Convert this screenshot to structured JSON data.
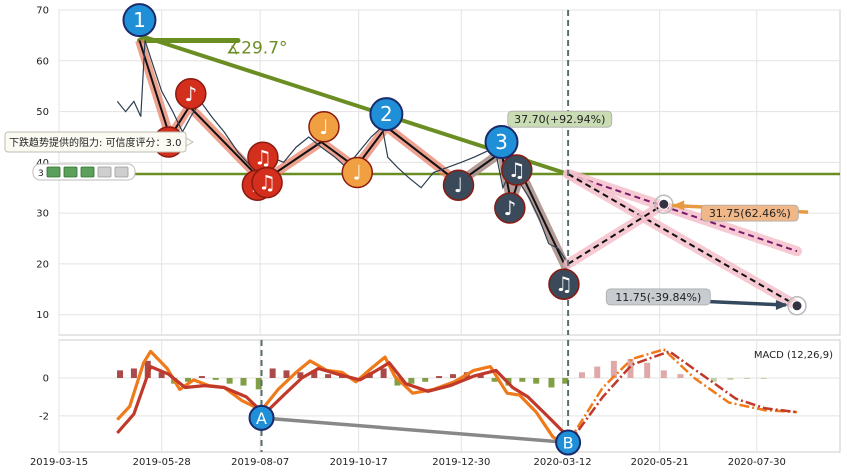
{
  "chart_data": [
    {
      "type": "line",
      "panel": "price",
      "ylim": [
        6,
        70
      ],
      "yticks": [
        10,
        20,
        30,
        40,
        50,
        60,
        70
      ],
      "grid": true,
      "price_series": [
        {
          "x": "2019-04-26",
          "y": 52
        },
        {
          "x": "2019-05-02",
          "y": 50
        },
        {
          "x": "2019-05-08",
          "y": 52
        },
        {
          "x": "2019-05-13",
          "y": 49
        },
        {
          "x": "2019-05-16",
          "y": 64
        },
        {
          "x": "2019-05-22",
          "y": 59
        },
        {
          "x": "2019-05-28",
          "y": 54
        },
        {
          "x": "2019-06-05",
          "y": 50
        },
        {
          "x": "2019-06-12",
          "y": 46
        },
        {
          "x": "2019-06-18",
          "y": 49
        },
        {
          "x": "2019-06-25",
          "y": 52
        },
        {
          "x": "2019-07-03",
          "y": 49
        },
        {
          "x": "2019-07-12",
          "y": 46
        },
        {
          "x": "2019-07-22",
          "y": 42
        },
        {
          "x": "2019-08-01",
          "y": 39
        },
        {
          "x": "2019-08-08",
          "y": 37
        },
        {
          "x": "2019-08-15",
          "y": 41
        },
        {
          "x": "2019-08-24",
          "y": 40
        },
        {
          "x": "2019-09-02",
          "y": 43
        },
        {
          "x": "2019-09-11",
          "y": 45
        },
        {
          "x": "2019-09-20",
          "y": 43
        },
        {
          "x": "2019-09-30",
          "y": 41
        },
        {
          "x": "2019-10-08",
          "y": 39
        },
        {
          "x": "2019-10-17",
          "y": 42
        },
        {
          "x": "2019-10-26",
          "y": 45
        },
        {
          "x": "2019-11-03",
          "y": 47
        },
        {
          "x": "2019-11-07",
          "y": 41
        },
        {
          "x": "2019-11-14",
          "y": 39
        },
        {
          "x": "2019-11-22",
          "y": 37
        },
        {
          "x": "2019-12-01",
          "y": 35
        },
        {
          "x": "2019-12-10",
          "y": 38
        },
        {
          "x": "2019-12-20",
          "y": 39
        },
        {
          "x": "2019-12-30",
          "y": 40
        },
        {
          "x": "2020-01-08",
          "y": 41
        },
        {
          "x": "2020-01-16",
          "y": 42
        },
        {
          "x": "2020-01-23",
          "y": 43
        },
        {
          "x": "2020-01-29",
          "y": 35
        },
        {
          "x": "2020-02-03",
          "y": 38
        },
        {
          "x": "2020-02-10",
          "y": 36
        },
        {
          "x": "2020-02-17",
          "y": 33
        },
        {
          "x": "2020-02-24",
          "y": 29
        },
        {
          "x": "2020-03-02",
          "y": 24
        },
        {
          "x": "2020-03-09",
          "y": 23
        },
        {
          "x": "2020-03-16",
          "y": 20
        }
      ],
      "zigzag": [
        {
          "x": "2019-05-12",
          "y": 64
        },
        {
          "x": "2019-06-03",
          "y": 45
        },
        {
          "x": "2019-06-17",
          "y": 51
        },
        {
          "x": "2019-08-06",
          "y": 37
        },
        {
          "x": "2019-08-13",
          "y": 37
        },
        {
          "x": "2019-09-20",
          "y": 44
        },
        {
          "x": "2019-10-15",
          "y": 39
        },
        {
          "x": "2019-11-06",
          "y": 47
        },
        {
          "x": "2019-12-28",
          "y": 36
        },
        {
          "x": "2020-01-28",
          "y": 42
        },
        {
          "x": "2020-02-04",
          "y": 32
        },
        {
          "x": "2020-02-11",
          "y": 38
        },
        {
          "x": "2020-03-15",
          "y": 19
        }
      ],
      "trendline": {
        "from": {
          "x": "2019-05-12",
          "y": 65
        },
        "to": {
          "x": "2020-03-16",
          "y": 37.7
        }
      },
      "angle_line": {
        "from": {
          "x": "2019-05-12",
          "y": 64
        },
        "to": {
          "x": "2019-07-22",
          "y": 64
        },
        "label": "∡29.7°"
      },
      "support_level": 37.7,
      "wave_labels": [
        {
          "text": "1",
          "x": "2019-05-12",
          "y": 68
        },
        {
          "text": "2",
          "x": "2019-11-06",
          "y": 49.5
        },
        {
          "text": "3",
          "x": "2020-01-28",
          "y": 44
        }
      ],
      "note_markers": [
        {
          "glyph": "♪",
          "x": "2019-06-02",
          "y": 44,
          "color": "#d42f1c"
        },
        {
          "glyph": "♪",
          "x": "2019-06-18",
          "y": 53.5,
          "color": "#d42f1c"
        },
        {
          "glyph": "♫",
          "x": "2019-08-09",
          "y": 41,
          "color": "#d42f1c"
        },
        {
          "glyph": "♪",
          "x": "2019-08-05",
          "y": 35.5,
          "color": "#d42f1c"
        },
        {
          "glyph": "♫",
          "x": "2019-08-12",
          "y": 36,
          "color": "#d42f1c"
        },
        {
          "glyph": "♩",
          "x": "2019-09-22",
          "y": 47,
          "color": "#f0a040"
        },
        {
          "glyph": "♩",
          "x": "2019-10-16",
          "y": 38,
          "color": "#f0a040"
        },
        {
          "glyph": "♩",
          "x": "2019-12-28",
          "y": 35.5,
          "color": "#3a4a5a"
        },
        {
          "glyph": "♫",
          "x": "2020-02-08",
          "y": 38.5,
          "color": "#3a4a5a"
        },
        {
          "glyph": "♪",
          "x": "2020-02-03",
          "y": 31,
          "color": "#3a4a5a"
        },
        {
          "glyph": "♫",
          "x": "2020-03-13",
          "y": 16,
          "color": "#3a4a5a"
        }
      ],
      "projections": [
        {
          "from": {
            "x": "2020-03-16",
            "y": 37.7
          },
          "to": {
            "x": "2020-08-28",
            "y": 22.5
          },
          "style": "purple-dash"
        },
        {
          "from": {
            "x": "2020-03-16",
            "y": 37.7
          },
          "to": {
            "x": "2020-08-28",
            "y": 11.75
          },
          "style": "black-dash"
        },
        {
          "from": {
            "x": "2020-03-16",
            "y": 20
          },
          "to": {
            "x": "2020-05-24",
            "y": 31.75
          },
          "style": "black-dash"
        }
      ],
      "annotations": [
        {
          "text": "37.70(+92.94%)",
          "x": "2020-03-10",
          "y": 48.5,
          "bg": "#c9dcb4"
        },
        {
          "text": "31.75(62.46%)",
          "x": "2020-07-25",
          "y": 30,
          "bg": "#f0b888"
        },
        {
          "text": "11.75(-39.84%)",
          "x": "2020-05-20",
          "y": 13.5,
          "bg": "#c8ccd0"
        }
      ],
      "tooltip": {
        "text": "下跌趋势提供的阻力: 可信度评分：3.0",
        "rating_label": "3"
      },
      "vline_date": "2020-03-16"
    },
    {
      "type": "line",
      "panel": "macd",
      "legend": "MACD (12,26,9)",
      "ylim": [
        -3.9,
        2
      ],
      "yticks": [
        0,
        -2
      ],
      "grid": true,
      "macd": [
        {
          "x": "2019-04-26",
          "y": -2.2
        },
        {
          "x": "2019-05-05",
          "y": -1.5
        },
        {
          "x": "2019-05-15",
          "y": 0.8
        },
        {
          "x": "2019-05-20",
          "y": 1.4
        },
        {
          "x": "2019-06-01",
          "y": 0.5
        },
        {
          "x": "2019-06-10",
          "y": -0.6
        },
        {
          "x": "2019-06-20",
          "y": -0.1
        },
        {
          "x": "2019-07-01",
          "y": -0.4
        },
        {
          "x": "2019-07-12",
          "y": -0.5
        },
        {
          "x": "2019-07-25",
          "y": -1.2
        },
        {
          "x": "2019-08-08",
          "y": -1.7
        },
        {
          "x": "2019-08-20",
          "y": -0.6
        },
        {
          "x": "2019-09-02",
          "y": 0.3
        },
        {
          "x": "2019-09-12",
          "y": 0.9
        },
        {
          "x": "2019-09-24",
          "y": 0.4
        },
        {
          "x": "2019-10-05",
          "y": 0.3
        },
        {
          "x": "2019-10-15",
          "y": -0.2
        },
        {
          "x": "2019-10-26",
          "y": 0.5
        },
        {
          "x": "2019-11-05",
          "y": 1.1
        },
        {
          "x": "2019-11-12",
          "y": 0.1
        },
        {
          "x": "2019-11-25",
          "y": -0.8
        },
        {
          "x": "2019-12-10",
          "y": -0.6
        },
        {
          "x": "2019-12-25",
          "y": -0.2
        },
        {
          "x": "2020-01-08",
          "y": 0.4
        },
        {
          "x": "2020-01-20",
          "y": 0.6
        },
        {
          "x": "2020-02-01",
          "y": -0.8
        },
        {
          "x": "2020-02-10",
          "y": -0.9
        },
        {
          "x": "2020-02-22",
          "y": -1.8
        },
        {
          "x": "2020-03-05",
          "y": -3.1
        },
        {
          "x": "2020-03-16",
          "y": -3.6
        }
      ],
      "signal": [
        {
          "x": "2019-04-26",
          "y": -2.9
        },
        {
          "x": "2019-05-08",
          "y": -1.9
        },
        {
          "x": "2019-05-20",
          "y": 0.6
        },
        {
          "x": "2019-06-02",
          "y": 0.2
        },
        {
          "x": "2019-06-14",
          "y": -0.5
        },
        {
          "x": "2019-06-28",
          "y": -0.4
        },
        {
          "x": "2019-07-12",
          "y": -0.5
        },
        {
          "x": "2019-07-28",
          "y": -1.0
        },
        {
          "x": "2019-08-10",
          "y": -1.9
        },
        {
          "x": "2019-08-24",
          "y": -0.9
        },
        {
          "x": "2019-09-06",
          "y": 0.0
        },
        {
          "x": "2019-09-18",
          "y": 0.5
        },
        {
          "x": "2019-10-02",
          "y": 0.2
        },
        {
          "x": "2019-10-18",
          "y": -0.1
        },
        {
          "x": "2019-10-30",
          "y": 0.4
        },
        {
          "x": "2019-11-08",
          "y": 0.8
        },
        {
          "x": "2019-11-20",
          "y": -0.3
        },
        {
          "x": "2019-12-06",
          "y": -0.7
        },
        {
          "x": "2019-12-22",
          "y": -0.4
        },
        {
          "x": "2020-01-08",
          "y": 0.1
        },
        {
          "x": "2020-01-24",
          "y": 0.4
        },
        {
          "x": "2020-02-05",
          "y": -0.5
        },
        {
          "x": "2020-02-16",
          "y": -1.0
        },
        {
          "x": "2020-03-01",
          "y": -2.0
        },
        {
          "x": "2020-03-16",
          "y": -3.1
        }
      ],
      "histogram": [
        {
          "x": "2019-04-28",
          "y": 0.4
        },
        {
          "x": "2019-05-08",
          "y": 0.5
        },
        {
          "x": "2019-05-18",
          "y": 0.9
        },
        {
          "x": "2019-05-28",
          "y": 0.3
        },
        {
          "x": "2019-06-06",
          "y": -0.3
        },
        {
          "x": "2019-06-16",
          "y": -0.2
        },
        {
          "x": "2019-06-26",
          "y": 0.1
        },
        {
          "x": "2019-07-06",
          "y": -0.1
        },
        {
          "x": "2019-07-16",
          "y": -0.3
        },
        {
          "x": "2019-07-26",
          "y": -0.4
        },
        {
          "x": "2019-08-06",
          "y": -0.6
        },
        {
          "x": "2019-08-16",
          "y": 0.5
        },
        {
          "x": "2019-08-26",
          "y": 0.4
        },
        {
          "x": "2019-09-05",
          "y": 0.3
        },
        {
          "x": "2019-09-15",
          "y": 0.4
        },
        {
          "x": "2019-09-25",
          "y": 0.2
        },
        {
          "x": "2019-10-05",
          "y": 0.1
        },
        {
          "x": "2019-10-15",
          "y": -0.1
        },
        {
          "x": "2019-10-25",
          "y": 0.3
        },
        {
          "x": "2019-11-04",
          "y": 0.5
        },
        {
          "x": "2019-11-14",
          "y": -0.4
        },
        {
          "x": "2019-11-24",
          "y": -0.3
        },
        {
          "x": "2019-12-04",
          "y": -0.2
        },
        {
          "x": "2019-12-14",
          "y": 0.1
        },
        {
          "x": "2019-12-24",
          "y": 0.2
        },
        {
          "x": "2020-01-03",
          "y": 0.3
        },
        {
          "x": "2020-01-13",
          "y": 0.2
        },
        {
          "x": "2020-01-23",
          "y": -0.2
        },
        {
          "x": "2020-02-02",
          "y": -0.4
        },
        {
          "x": "2020-02-12",
          "y": -0.2
        },
        {
          "x": "2020-02-22",
          "y": -0.3
        },
        {
          "x": "2020-03-04",
          "y": -0.5
        },
        {
          "x": "2020-03-14",
          "y": -0.3
        },
        {
          "x": "2020-03-26",
          "y": 0.3
        },
        {
          "x": "2020-04-06",
          "y": 0.6
        },
        {
          "x": "2020-04-18",
          "y": 0.9
        },
        {
          "x": "2020-04-30",
          "y": 1.0
        },
        {
          "x": "2020-05-12",
          "y": 0.8
        },
        {
          "x": "2020-05-24",
          "y": 0.4
        },
        {
          "x": "2020-06-05",
          "y": 0.2
        },
        {
          "x": "2020-06-17",
          "y": -0.05
        },
        {
          "x": "2020-06-29",
          "y": -0.2
        },
        {
          "x": "2020-07-11",
          "y": -0.1
        },
        {
          "x": "2020-07-23",
          "y": -0.05
        },
        {
          "x": "2020-08-04",
          "y": -0.02
        }
      ],
      "forecast_macd": [
        {
          "x": "2020-03-16",
          "y": -3.4
        },
        {
          "x": "2020-04-10",
          "y": -0.5
        },
        {
          "x": "2020-05-01",
          "y": 1.0
        },
        {
          "x": "2020-05-24",
          "y": 1.5
        },
        {
          "x": "2020-06-15",
          "y": 0.0
        },
        {
          "x": "2020-07-10",
          "y": -1.3
        },
        {
          "x": "2020-08-05",
          "y": -1.7
        },
        {
          "x": "2020-08-28",
          "y": -1.8
        }
      ],
      "forecast_signal": [
        {
          "x": "2020-03-16",
          "y": -3.5
        },
        {
          "x": "2020-04-10",
          "y": -1.0
        },
        {
          "x": "2020-05-01",
          "y": 0.7
        },
        {
          "x": "2020-05-28",
          "y": 1.4
        },
        {
          "x": "2020-06-20",
          "y": 0.2
        },
        {
          "x": "2020-07-15",
          "y": -1.1
        },
        {
          "x": "2020-08-05",
          "y": -1.6
        },
        {
          "x": "2020-08-28",
          "y": -1.8
        }
      ],
      "divergence": [
        {
          "label": "A",
          "x": "2019-08-08",
          "y": -2.1
        },
        {
          "label": "B",
          "x": "2020-03-16",
          "y": -3.4
        }
      ],
      "vline_dates": [
        "2019-08-08",
        "2020-03-16"
      ]
    }
  ],
  "x_axis": {
    "ticks": [
      "2019-03-15",
      "2019-05-28",
      "2019-08-07",
      "2019-10-17",
      "2019-12-30",
      "2020-03-12",
      "2020-05-21",
      "2020-07-30"
    ]
  },
  "colors": {
    "trend_green": "#6b8e23",
    "zigzag_salmon": "#e8826a",
    "zigzag_black": "#111111",
    "price_line": "#2c3e50",
    "macd_orange": "#f07a1a",
    "signal_red": "#c0392b",
    "dashed_vline": "#5a6e6e",
    "wave_blue": "#1f8fd8"
  }
}
